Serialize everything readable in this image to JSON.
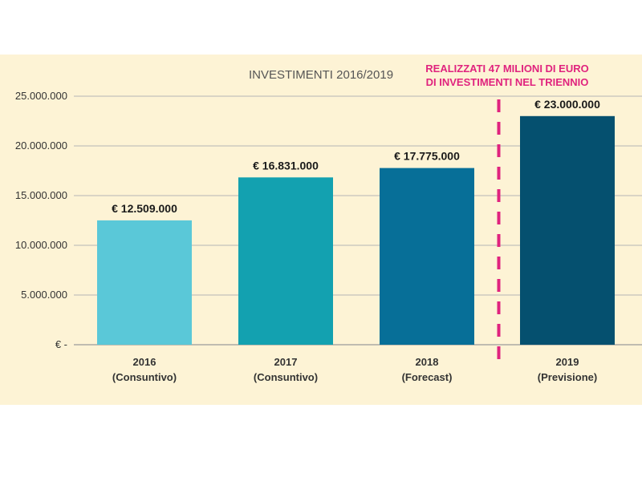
{
  "chart_data": {
    "type": "bar",
    "title": "INVESTIMENTI 2016/2019",
    "annotation": {
      "line1": "REALIZZATI 47 MILIONI DI EURO",
      "line2": "DI INVESTIMENTI NEL TRIENNIO",
      "color": "#e0237e"
    },
    "categories": [
      {
        "year": "2016",
        "note": "(Consuntivo)"
      },
      {
        "year": "2017",
        "note": "(Consuntivo)"
      },
      {
        "year": "2018",
        "note": "(Forecast)"
      },
      {
        "year": "2019",
        "note": "(Previsione)"
      }
    ],
    "values": [
      12509000,
      16831000,
      17775000,
      23000000
    ],
    "value_labels": [
      "€ 12.509.000",
      "€ 16.831.000",
      "€ 17.775.000",
      "€ 23.000.000"
    ],
    "bar_colors": [
      "#5ac8d8",
      "#13a1b0",
      "#076f98",
      "#05506f"
    ],
    "ylim": [
      0,
      25000000
    ],
    "y_ticks": [
      0,
      5000000,
      10000000,
      15000000,
      20000000,
      25000000
    ],
    "y_tick_labels": [
      "€ -",
      "5.000.000",
      "10.000.000",
      "15.000.000",
      "20.000.000",
      "25.000.000"
    ],
    "grid": true,
    "background_color": "#fdf3d5",
    "divider_after_category": 2
  }
}
